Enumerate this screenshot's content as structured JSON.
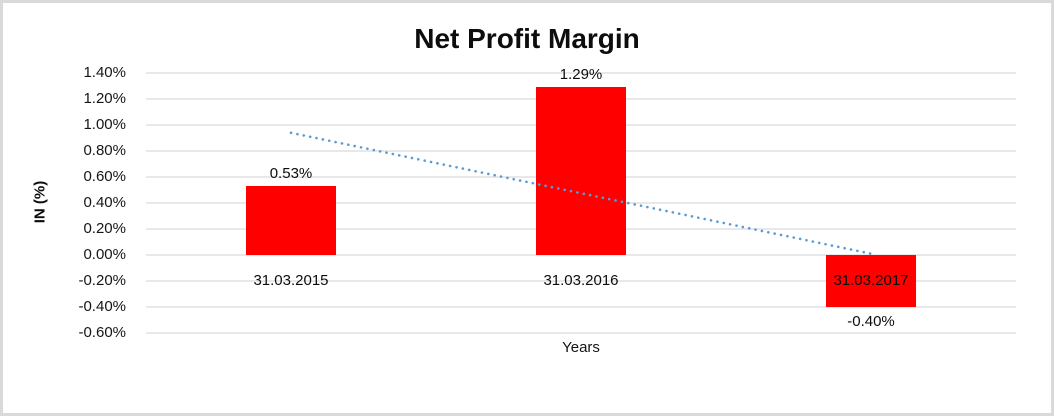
{
  "chart_data": {
    "type": "bar",
    "title": "Net Profit Margin",
    "xlabel": "Years",
    "ylabel": "IN (%)",
    "categories": [
      "31.03.2015",
      "31.03.2016",
      "31.03.2017"
    ],
    "values": [
      0.53,
      1.29,
      -0.4
    ],
    "value_labels": [
      "0.53%",
      "1.29%",
      "-0.40%"
    ],
    "ylim": [
      -0.6,
      1.4
    ],
    "ytick_values": [
      1.4,
      1.2,
      1.0,
      0.8,
      0.6,
      0.4,
      0.2,
      0.0,
      -0.2,
      -0.4,
      -0.6
    ],
    "ytick_labels": [
      "1.40%",
      "1.20%",
      "1.00%",
      "0.80%",
      "0.60%",
      "0.40%",
      "0.20%",
      "0.00%",
      "-0.20%",
      "-0.40%",
      "-0.60%"
    ],
    "grid": true,
    "legend": "none",
    "bar_color": "#ff0000",
    "gridline_color": "#d9d9d9",
    "trendline": {
      "type": "linear",
      "style": "dotted",
      "color": "#5b9bd5",
      "start_value": 0.94,
      "end_value": 0.01
    }
  }
}
